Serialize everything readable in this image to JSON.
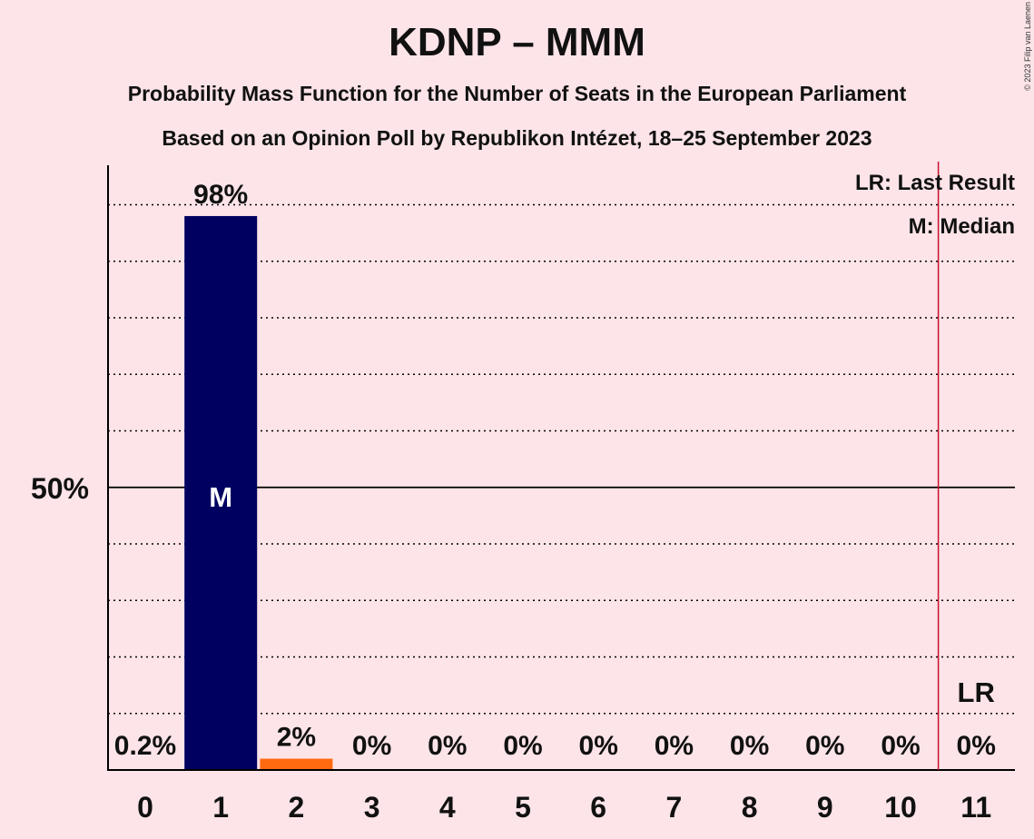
{
  "title": "KDNP – MMM",
  "subtitle": "Probability Mass Function for the Number of Seats in the European Parliament",
  "subtitle2": "Based on an Opinion Poll by Republikon Intézet, 18–25 September 2023",
  "copyright": "© 2023 Filip van Laenen",
  "legend": {
    "last_result": "LR: Last Result",
    "median": "M: Median"
  },
  "colors": {
    "background": "#FCE4E8",
    "party": "#000060",
    "secondary": "#FF6A10",
    "last_result_line": "#C8102E"
  },
  "chart_data": {
    "type": "bar",
    "categories": [
      "0",
      "1",
      "2",
      "3",
      "4",
      "5",
      "6",
      "7",
      "8",
      "9",
      "10",
      "11"
    ],
    "values": [
      0.2,
      98,
      2,
      0,
      0,
      0,
      0,
      0,
      0,
      0,
      0,
      0
    ],
    "value_labels": [
      "0.2%",
      "98%",
      "2%",
      "0%",
      "0%",
      "0%",
      "0%",
      "0%",
      "0%",
      "0%",
      "0%",
      "0%"
    ],
    "ytick_label": "50%",
    "ylim": [
      0,
      105
    ],
    "median_seat": 1,
    "median_marker": "M",
    "last_result_seat": 11,
    "last_result_marker": "LR",
    "grid": "dotted every 10%, solid at 50%",
    "legend_position": "top-right"
  }
}
